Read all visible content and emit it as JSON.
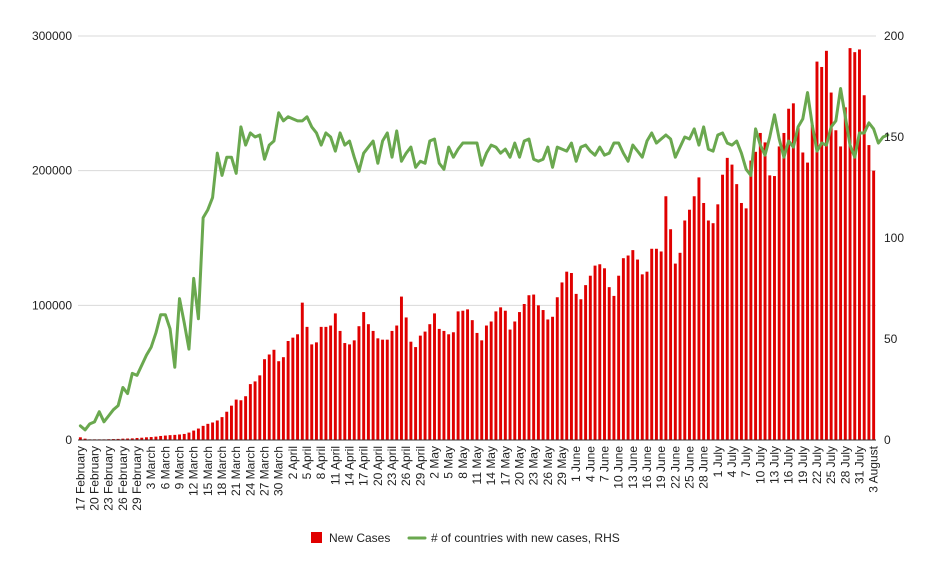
{
  "chart_data": {
    "type": "bar",
    "title": "",
    "xlabel": "",
    "ylabel": "",
    "y_left": {
      "min": 0,
      "max": 300000,
      "ticks": [
        0,
        100000,
        200000,
        300000
      ],
      "tick_labels": [
        "0",
        "100000",
        "200000",
        "300000"
      ]
    },
    "y_right": {
      "min": 0,
      "max": 200,
      "ticks": [
        0,
        50,
        100,
        150,
        200
      ],
      "tick_labels": [
        "0",
        "50",
        "100",
        "150",
        "200"
      ]
    },
    "grid": true,
    "legend_position": "bottom",
    "colors": {
      "bars": "#e00000",
      "line": "#6aa84f",
      "grid": "#d9d9d9"
    },
    "x_tick_labels": [
      "17 February",
      "20 February",
      "23 February",
      "26 February",
      "29 February",
      "3 March",
      "6 March",
      "9 March",
      "12 March",
      "15 March",
      "18 March",
      "21 March",
      "24 March",
      "27 March",
      "30 March",
      "2 April",
      "5 April",
      "8 April",
      "11 April",
      "14 April",
      "17 April",
      "20 April",
      "23 April",
      "26 April",
      "29 April",
      "2 May",
      "5 May",
      "8 May",
      "11 May",
      "14 May",
      "17 May",
      "20 May",
      "23 May",
      "26 May",
      "29 May",
      "1 June",
      "4 June",
      "7 June",
      "10 June",
      "13 June",
      "16 June",
      "19 June",
      "22 June",
      "25 June",
      "28 June",
      "1 July",
      "4 July",
      "7 July",
      "10 July",
      "13 July",
      "16 July",
      "19 July",
      "22 July",
      "25 July",
      "28 July",
      "31 July",
      "3 August"
    ],
    "x_tick_step_days": 3,
    "series": [
      {
        "name": "New Cases",
        "type": "bar",
        "axis": "left",
        "values": [
          2000,
          1000,
          500,
          500,
          500,
          500,
          600,
          700,
          800,
          1000,
          1100,
          1200,
          1500,
          1700,
          2000,
          2200,
          2500,
          3000,
          3300,
          3600,
          3800,
          4100,
          4500,
          5500,
          7000,
          8500,
          10500,
          12000,
          13000,
          14500,
          17000,
          21000,
          25500,
          30000,
          29500,
          32500,
          41500,
          43500,
          48000,
          60000,
          63500,
          67000,
          58500,
          61500,
          73500,
          76000,
          78500,
          102000,
          84000,
          71000,
          72500,
          84000,
          84000,
          85000,
          94000,
          81000,
          72000,
          71000,
          74000,
          84500,
          95000,
          86000,
          81000,
          75500,
          74500,
          74500,
          81000,
          85000,
          106500,
          91000,
          73000,
          69000,
          77500,
          80500,
          86000,
          94000,
          82500,
          81000,
          78500,
          80000,
          95500,
          96000,
          97000,
          89000,
          79500,
          74000,
          85000,
          88000,
          95500,
          98500,
          96000,
          82000,
          88000,
          95000,
          101000,
          107500,
          108000,
          100000,
          96500,
          89500,
          91500,
          106000,
          117000,
          125000,
          124000,
          108500,
          104500,
          115000,
          122000,
          129500,
          130500,
          127500,
          113500,
          107000,
          122000,
          135000,
          137000,
          141000,
          134000,
          123000,
          125000,
          142000,
          142000,
          140000,
          181000,
          156500,
          131000,
          139000,
          163000,
          171000,
          181000,
          195000,
          176000,
          163000,
          161000,
          175000,
          197000,
          209500,
          204500,
          190000,
          176000,
          172000,
          207500,
          214000,
          228000,
          221000,
          196500,
          196000,
          218000,
          228000,
          246000,
          250000,
          232000,
          213500,
          206000,
          234000,
          281000,
          277000,
          289000,
          258000,
          230000,
          218000,
          247000,
          291000,
          288000,
          290000,
          256000,
          219000,
          200000
        ]
      },
      {
        "name": "# of countries with new cases, RHS",
        "type": "line",
        "axis": "right",
        "values": [
          7,
          5,
          8,
          9,
          14,
          9,
          12,
          15,
          17,
          26,
          23,
          33,
          32,
          37,
          42,
          46,
          53,
          62,
          62,
          55,
          36,
          70,
          58,
          45,
          80,
          60,
          110,
          114,
          120,
          142,
          131,
          140,
          140,
          132,
          155,
          146,
          152,
          150,
          151,
          139,
          146,
          148,
          162,
          158,
          160,
          159,
          158,
          158,
          160,
          155,
          152,
          146,
          152,
          150,
          143,
          152,
          146,
          148,
          140,
          133,
          142,
          145,
          148,
          137,
          148,
          152,
          140,
          153,
          138,
          142,
          145,
          135,
          138,
          137,
          148,
          149,
          137,
          134,
          145,
          140,
          144,
          147,
          147,
          147,
          147,
          136,
          142,
          146,
          145,
          142,
          144,
          140,
          147,
          140,
          148,
          149,
          139,
          138,
          139,
          145,
          135,
          145,
          144,
          143,
          147,
          138,
          145,
          146,
          143,
          141,
          145,
          141,
          142,
          147,
          147,
          142,
          138,
          146,
          143,
          140,
          148,
          152,
          147,
          149,
          151,
          149,
          140,
          145,
          150,
          149,
          154,
          146,
          155,
          144,
          143,
          151,
          152,
          147,
          146,
          148,
          142,
          134,
          131,
          154,
          146,
          141,
          150,
          161,
          149,
          140,
          148,
          145,
          155,
          159,
          172,
          156,
          143,
          147,
          146,
          155,
          158,
          174,
          160,
          146,
          140,
          152,
          152,
          157,
          154,
          147,
          150,
          151
        ]
      }
    ]
  }
}
